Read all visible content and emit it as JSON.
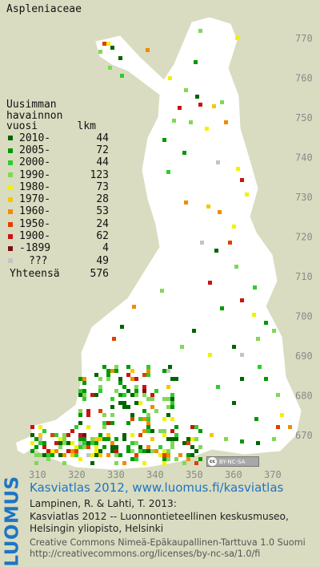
{
  "title": "Aspleniaceae",
  "map": {
    "background": "#d9dcc0",
    "land_color": "#ffffff",
    "y_axis_labels": [
      "770",
      "760",
      "750",
      "740",
      "730",
      "720",
      "710",
      "700",
      "690",
      "680",
      "670"
    ],
    "x_axis_labels": [
      "310",
      "320",
      "330",
      "340",
      "350",
      "360",
      "370"
    ]
  },
  "legend": {
    "heading_lines": [
      "Uusimman",
      "havainnon"
    ],
    "col_header_left": "vuosi",
    "col_header_right": "lkm",
    "entries": [
      {
        "label": "2010-",
        "count": "44",
        "color": "#006400"
      },
      {
        "label": "2005-",
        "count": "72",
        "color": "#009900"
      },
      {
        "label": "2000-",
        "count": "44",
        "color": "#2ecc2e"
      },
      {
        "label": "1990-",
        "count": "123",
        "color": "#7ed957"
      },
      {
        "label": "1980-",
        "count": "73",
        "color": "#f2f200"
      },
      {
        "label": "1970-",
        "count": "28",
        "color": "#f5c800"
      },
      {
        "label": "1960-",
        "count": "53",
        "color": "#f08c00"
      },
      {
        "label": "1950-",
        "count": "24",
        "color": "#e04000"
      },
      {
        "label": "1900-",
        "count": "62",
        "color": "#c81414"
      },
      {
        "label": "-1899",
        "count": "4",
        "color": "#7a1010"
      },
      {
        "label": "???",
        "count": "49",
        "color": "#c4c4c4"
      }
    ],
    "total_label": "Yhteensä",
    "total_count": "576"
  },
  "license_badge": {
    "cc": "cc",
    "text": "BY-NC-SA"
  },
  "footer": {
    "logo": "LUOMUS",
    "logo_color": "#1e74c4",
    "link_line": "Kasviatlas 2012, www.luomus.fi/kasviatlas",
    "citation_lines": [
      "Lampinen, R. & Lahti, T. 2013:",
      "Kasviatlas 2012 -- Luonnontieteellinen keskusmuseo,",
      "Helsingin yliopisto, Helsinki"
    ],
    "license_lines": [
      "Creative Commons Nimeä-Epäkaupallinen-Tarttuva 1.0 Suomi",
      "http://creativecommons.org/licenses/by-nc-sa/1.0/fi"
    ]
  }
}
